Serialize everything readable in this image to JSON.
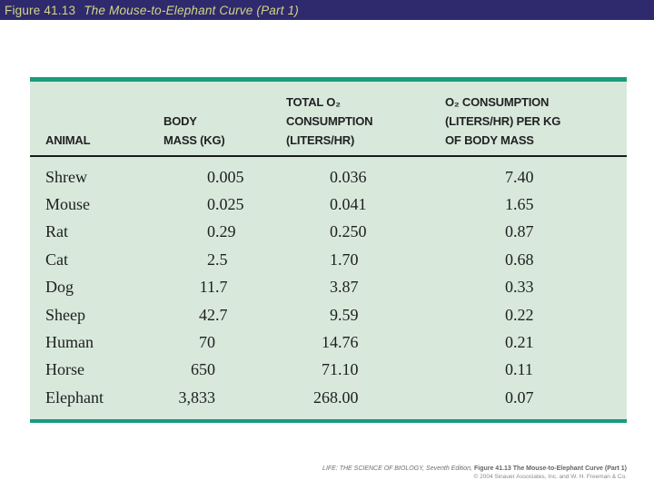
{
  "title_bar": {
    "figure_label": "Figure 41.13",
    "figure_title": "The Mouse-to-Elephant Curve (Part 1)"
  },
  "table": {
    "header": {
      "col1_lines": [
        "ANIMAL"
      ],
      "col2_lines": [
        "BODY",
        "MASS (KG)"
      ],
      "col3_lines": [
        "TOTAL O₂",
        "CONSUMPTION",
        "(LITERS/HR)"
      ],
      "col4_lines": [
        "O₂ CONSUMPTION",
        "(LITERS/HR) PER KG",
        "OF BODY MASS"
      ]
    },
    "rows": [
      {
        "animal": "Shrew",
        "body_mass_kg": "0.005",
        "total_o2_liters_hr": "0.036",
        "o2_per_kg": "7.40"
      },
      {
        "animal": "Mouse",
        "body_mass_kg": "0.025",
        "total_o2_liters_hr": "0.041",
        "o2_per_kg": "1.65"
      },
      {
        "animal": "Rat",
        "body_mass_kg": "0.29",
        "total_o2_liters_hr": "0.250",
        "o2_per_kg": "0.87"
      },
      {
        "animal": "Cat",
        "body_mass_kg": "2.5",
        "total_o2_liters_hr": "1.70",
        "o2_per_kg": "0.68"
      },
      {
        "animal": "Dog",
        "body_mass_kg": "11.7",
        "total_o2_liters_hr": "3.87",
        "o2_per_kg": "0.33"
      },
      {
        "animal": "Sheep",
        "body_mass_kg": "42.7",
        "total_o2_liters_hr": "9.59",
        "o2_per_kg": "0.22"
      },
      {
        "animal": "Human",
        "body_mass_kg": "70",
        "total_o2_liters_hr": "14.76",
        "o2_per_kg": "0.21"
      },
      {
        "animal": "Horse",
        "body_mass_kg": "650",
        "total_o2_liters_hr": "71.10",
        "o2_per_kg": "0.11"
      },
      {
        "animal": "Elephant",
        "body_mass_kg": "3,833",
        "total_o2_liters_hr": "268.00",
        "o2_per_kg": "0.07"
      }
    ]
  },
  "footer": {
    "credit_italic": "LIFE: THE SCIENCE OF BIOLOGY, Seventh Edition,",
    "credit_bold": "Figure 41.13 The Mouse-to-Elephant Curve (Part 1)",
    "copyright": "© 2004 Sinauer Associates, Inc. and W. H. Freeman & Co."
  },
  "colors": {
    "title_bar_bg": "#2e2a6d",
    "title_text": "#d4d584",
    "table_bg": "#d8e9dc",
    "table_accent": "#189c7c",
    "header_rule": "#1a1a1a"
  },
  "chart_data": {
    "type": "table",
    "title": "The Mouse-to-Elephant Curve (Part 1)",
    "columns": [
      "ANIMAL",
      "BODY MASS (KG)",
      "TOTAL O2 CONSUMPTION (LITERS/HR)",
      "O2 CONSUMPTION (LITERS/HR) PER KG OF BODY MASS"
    ],
    "rows": [
      [
        "Shrew",
        0.005,
        0.036,
        7.4
      ],
      [
        "Mouse",
        0.025,
        0.041,
        1.65
      ],
      [
        "Rat",
        0.29,
        0.25,
        0.87
      ],
      [
        "Cat",
        2.5,
        1.7,
        0.68
      ],
      [
        "Dog",
        11.7,
        3.87,
        0.33
      ],
      [
        "Sheep",
        42.7,
        9.59,
        0.22
      ],
      [
        "Human",
        70,
        14.76,
        0.21
      ],
      [
        "Horse",
        650,
        71.1,
        0.11
      ],
      [
        "Elephant",
        3833,
        268.0,
        0.07
      ]
    ]
  }
}
